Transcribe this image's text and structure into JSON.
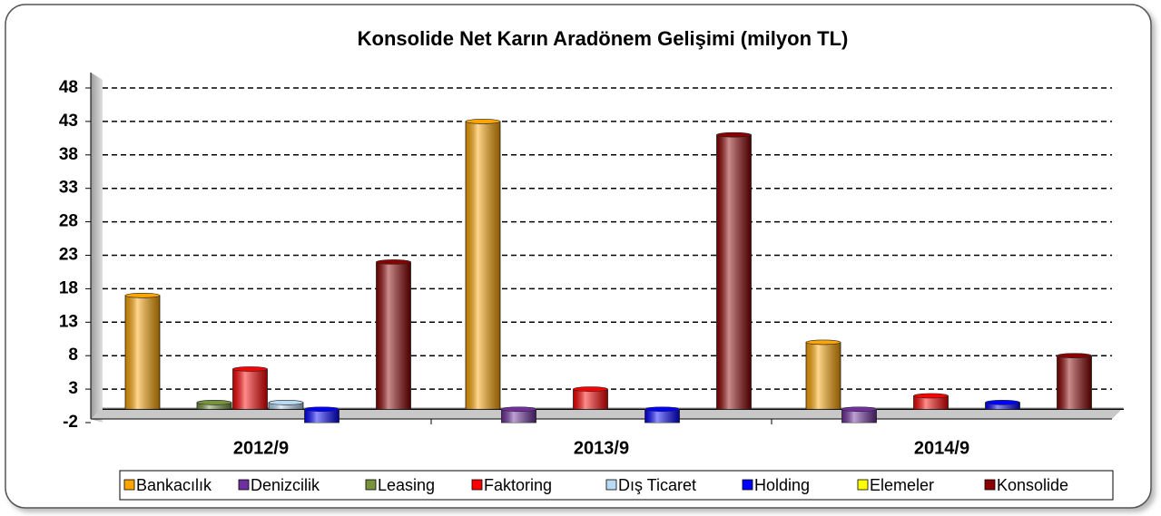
{
  "chart_data": {
    "type": "bar",
    "title": "Konsolide Net Karın Aradönem Gelişimi (milyon TL)",
    "categories": [
      "2012/9",
      "2013/9",
      "2014/9"
    ],
    "series": [
      {
        "name": "Bankacılık",
        "color": "#FFA500",
        "values": [
          17,
          43,
          10
        ]
      },
      {
        "name": "Denizcilik",
        "color": "#7030A0",
        "values": [
          0,
          -2,
          -2
        ]
      },
      {
        "name": "Leasing",
        "color": "#77933C",
        "values": [
          1,
          0,
          0
        ]
      },
      {
        "name": "Faktoring",
        "color": "#FF0000",
        "values": [
          6,
          3,
          2
        ]
      },
      {
        "name": "Dış Ticaret",
        "color": "#B9DAF5",
        "values": [
          1,
          0,
          0
        ]
      },
      {
        "name": "Holding",
        "color": "#0000FF",
        "values": [
          -2,
          -2,
          1
        ]
      },
      {
        "name": "Elemeler",
        "color": "#FFFF00",
        "values": [
          0,
          0,
          0
        ]
      },
      {
        "name": "Konsolide",
        "color": "#8B0000",
        "values": [
          22,
          41,
          8
        ]
      }
    ],
    "ylim": [
      -2,
      50
    ],
    "yticks": [
      -2,
      3,
      8,
      13,
      18,
      23,
      28,
      33,
      38,
      43,
      48
    ],
    "grid": true,
    "legend": "bottom"
  }
}
